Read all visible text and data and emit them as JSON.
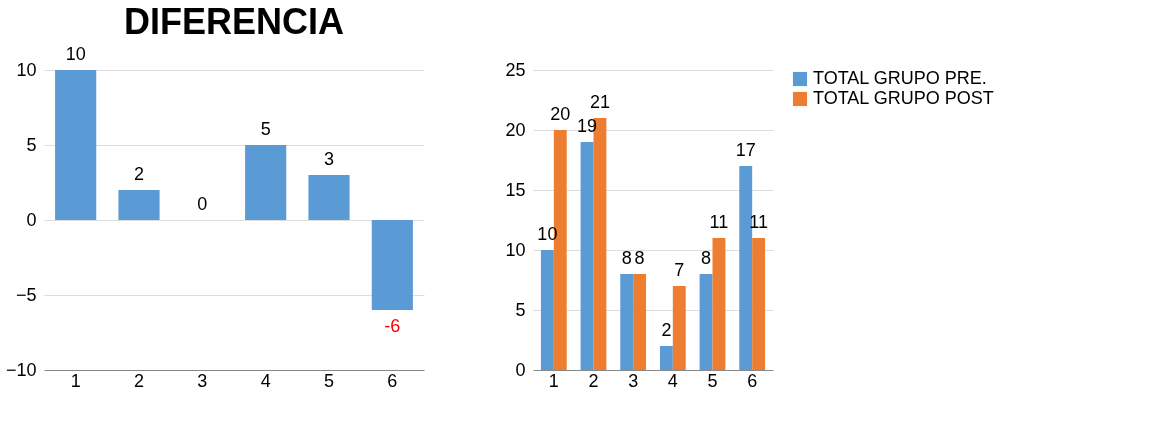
{
  "chart_data": [
    {
      "type": "bar",
      "title": "DIFERENCIA",
      "categories": [
        "1",
        "2",
        "3",
        "4",
        "5",
        "6"
      ],
      "values": [
        10,
        2,
        0,
        5,
        3,
        -6
      ],
      "color": "#5b9bd5",
      "ylim": [
        -10,
        10
      ],
      "yticks": [
        -10,
        -5,
        0,
        5,
        10
      ],
      "grid": "y",
      "data_labels": true,
      "legend": false
    },
    {
      "type": "bar",
      "categories": [
        "1",
        "2",
        "3",
        "4",
        "5",
        "6"
      ],
      "series": [
        {
          "name": "TOTAL GRUPO PRE.",
          "color": "#5b9bd5",
          "values": [
            10,
            19,
            8,
            2,
            8,
            17
          ]
        },
        {
          "name": "TOTAL GRUPO POST",
          "color": "#ed7d31",
          "values": [
            20,
            21,
            8,
            7,
            11,
            11
          ]
        }
      ],
      "ylim": [
        0,
        25
      ],
      "yticks": [
        0,
        5,
        10,
        15,
        20,
        25
      ],
      "grid": "y",
      "data_labels": true,
      "legend": "right"
    }
  ]
}
